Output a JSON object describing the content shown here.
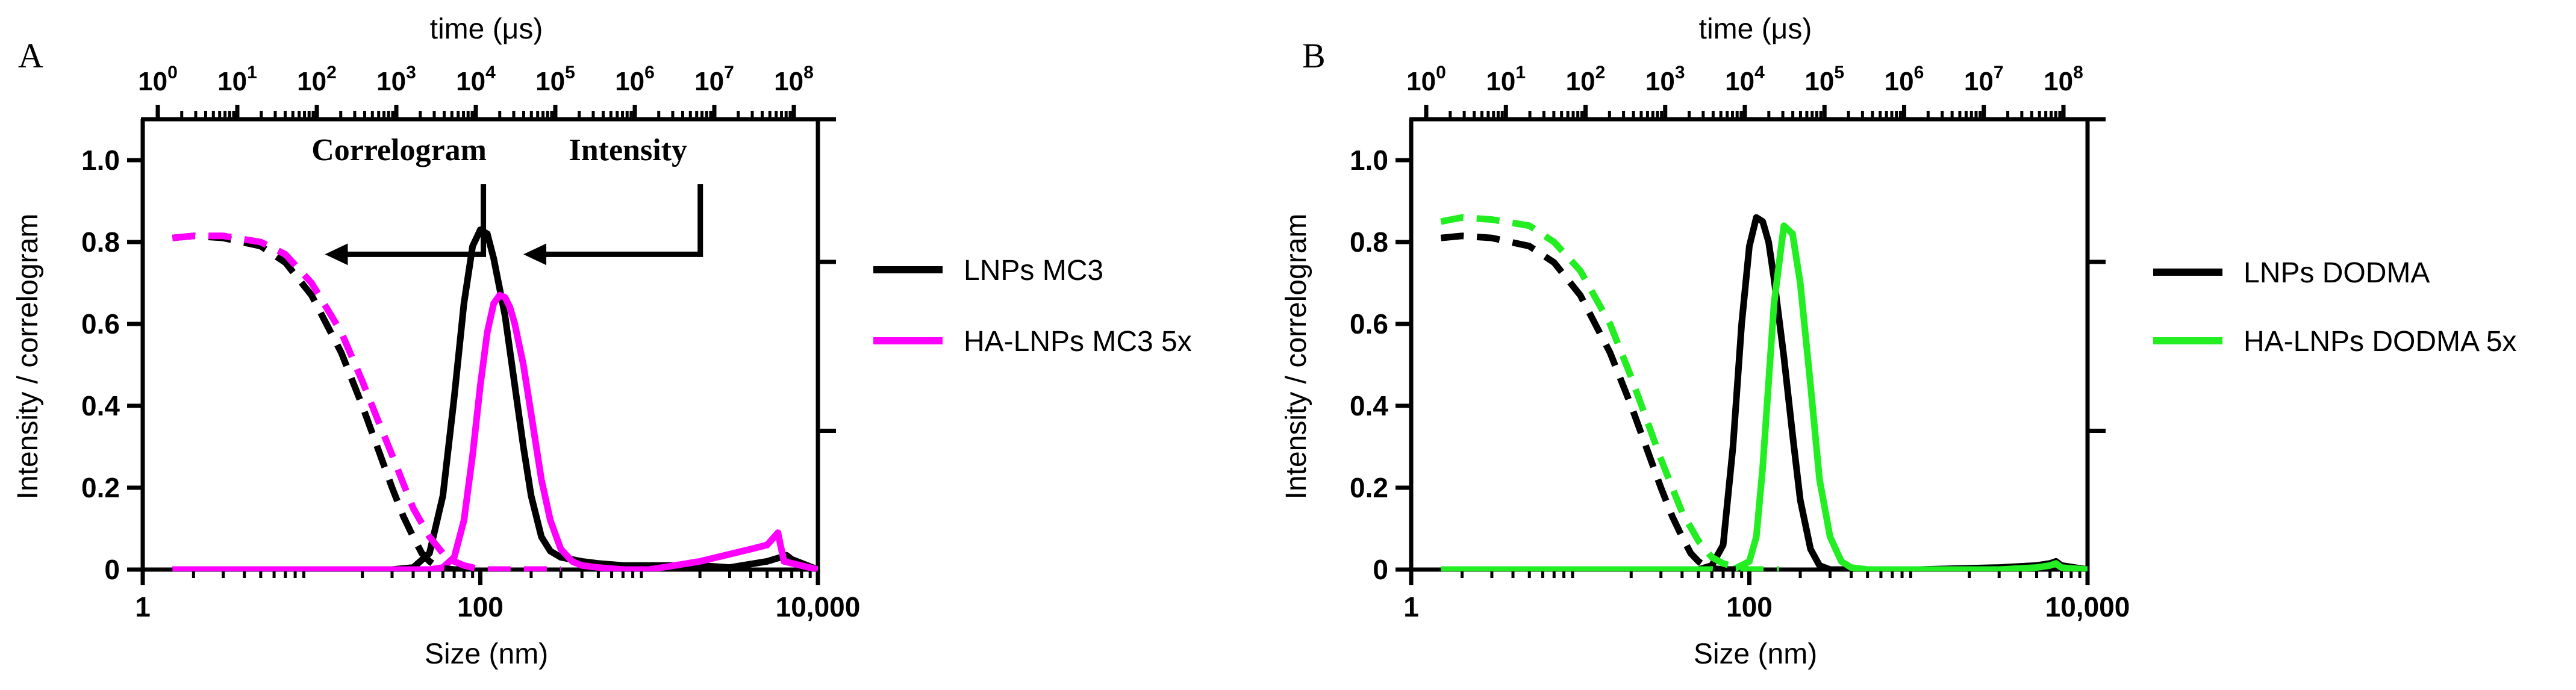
{
  "panels": [
    {
      "label": "A",
      "chart_data": {
        "type": "line",
        "title": "",
        "xlabel": "Size (nm)",
        "ylabel": "Intensity / correlogram",
        "x_scale": "log",
        "xlim": [
          1,
          10000
        ],
        "ylim": [
          0,
          1.1
        ],
        "x_ticks": [
          1,
          100,
          10000
        ],
        "x_tick_labels": [
          "1",
          "100",
          "10,000"
        ],
        "y_ticks": [
          0,
          0.2,
          0.4,
          0.6,
          0.8,
          1.0
        ],
        "y_tick_labels": [
          "0",
          "0.2",
          "0.4",
          "0.6",
          "0.8",
          "1.0"
        ],
        "top_axis": {
          "label": "time (μs)",
          "ticks": [
            {
              "base": "10",
              "exp": "0"
            },
            {
              "base": "10",
              "exp": "1"
            },
            {
              "base": "10",
              "exp": "2"
            },
            {
              "base": "10",
              "exp": "3"
            },
            {
              "base": "10",
              "exp": "4"
            },
            {
              "base": "10",
              "exp": "5"
            },
            {
              "base": "10",
              "exp": "6"
            },
            {
              "base": "10",
              "exp": "7"
            },
            {
              "base": "10",
              "exp": "8"
            }
          ]
        },
        "annotations": [
          {
            "text": "Correlogram",
            "x": 33,
            "y": 1.0,
            "arrow_to": {
              "x": 12,
              "y": 0.77
            }
          },
          {
            "text": "Intensity",
            "x": 750,
            "y": 1.0,
            "arrow_to": {
              "x": 180,
              "y": 0.77
            }
          }
        ],
        "legend": {
          "position": "right"
        },
        "series": [
          {
            "name": "LNPs MC3",
            "kind": "intensity",
            "style": "solid",
            "color": "#000000",
            "x": [
              1.5,
              30,
              40,
              50,
              60,
              70,
              80,
              90,
              100,
              110,
              120,
              140,
              160,
              180,
              200,
              230,
              260,
              300,
              400,
              500,
              700,
              1000,
              2000,
              3000,
              5000,
              6000,
              6500,
              7000,
              10000
            ],
            "y": [
              0,
              0,
              0.005,
              0.04,
              0.18,
              0.42,
              0.65,
              0.79,
              0.83,
              0.82,
              0.76,
              0.62,
              0.45,
              0.3,
              0.18,
              0.08,
              0.045,
              0.03,
              0.02,
              0.015,
              0.01,
              0.01,
              0.01,
              0.005,
              0.02,
              0.03,
              0.035,
              0.025,
              0
            ]
          },
          {
            "name": "HA-LNPs MC3 5x",
            "kind": "intensity",
            "style": "solid",
            "color": "#ff00ff",
            "x": [
              1.5,
              50,
              60,
              70,
              80,
              90,
              100,
              110,
              120,
              130,
              140,
              150,
              160,
              180,
              200,
              230,
              260,
              300,
              350,
              400,
              500,
              700,
              1000,
              2000,
              4000,
              5000,
              5800,
              6000,
              6300,
              10000
            ],
            "y": [
              0,
              0,
              0.005,
              0.03,
              0.12,
              0.28,
              0.45,
              0.58,
              0.65,
              0.67,
              0.665,
              0.64,
              0.6,
              0.5,
              0.38,
              0.22,
              0.12,
              0.05,
              0.02,
              0.01,
              0.005,
              0,
              0,
              0.02,
              0.05,
              0.06,
              0.09,
              0.06,
              0.02,
              0
            ]
          },
          {
            "name": "LNPs MC3 correlogram",
            "kind": "correlogram",
            "style": "dashed",
            "color": "#000000",
            "x": [
              1.5,
              2,
              3,
              5,
              7,
              10,
              15,
              20,
              25,
              30,
              35,
              40,
              45,
              50,
              55,
              60,
              70,
              100
            ],
            "y": [
              0.81,
              0.815,
              0.81,
              0.79,
              0.75,
              0.67,
              0.53,
              0.4,
              0.29,
              0.2,
              0.13,
              0.08,
              0.04,
              0.02,
              0.008,
              0.003,
              0,
              0
            ]
          },
          {
            "name": "HA-LNPs MC3 5x correlogram",
            "kind": "correlogram",
            "style": "dashed",
            "color": "#ff00ff",
            "x": [
              1.5,
              2,
              3,
              5,
              7,
              10,
              15,
              20,
              25,
              30,
              35,
              40,
              50,
              60,
              70,
              80,
              90,
              100,
              150,
              200,
              300
            ],
            "y": [
              0.81,
              0.815,
              0.815,
              0.8,
              0.77,
              0.7,
              0.58,
              0.46,
              0.36,
              0.28,
              0.21,
              0.15,
              0.08,
              0.04,
              0.02,
              0.01,
              0.005,
              0,
              0,
              0,
              0
            ]
          }
        ]
      }
    },
    {
      "label": "B",
      "chart_data": {
        "type": "line",
        "title": "",
        "xlabel": "Size (nm)",
        "ylabel": "Intensity / correlogram",
        "x_scale": "log",
        "xlim": [
          1,
          10000
        ],
        "ylim": [
          0,
          1.1
        ],
        "x_ticks": [
          1,
          100,
          10000
        ],
        "x_tick_labels": [
          "1",
          "100",
          "10,000"
        ],
        "y_ticks": [
          0,
          0.2,
          0.4,
          0.6,
          0.8,
          1.0
        ],
        "y_tick_labels": [
          "0",
          "0.2",
          "0.4",
          "0.6",
          "0.8",
          "1.0"
        ],
        "top_axis": {
          "label": "time (μs)",
          "ticks": [
            {
              "base": "10",
              "exp": "0"
            },
            {
              "base": "10",
              "exp": "1"
            },
            {
              "base": "10",
              "exp": "2"
            },
            {
              "base": "10",
              "exp": "3"
            },
            {
              "base": "10",
              "exp": "4"
            },
            {
              "base": "10",
              "exp": "5"
            },
            {
              "base": "10",
              "exp": "6"
            },
            {
              "base": "10",
              "exp": "7"
            },
            {
              "base": "10",
              "exp": "8"
            }
          ]
        },
        "annotations": [],
        "legend": {
          "position": "right"
        },
        "series": [
          {
            "name": "LNPs DODMA",
            "kind": "intensity",
            "style": "solid",
            "color": "#000000",
            "x": [
              1.5,
              50,
              60,
              70,
              80,
              90,
              100,
              110,
              120,
              130,
              140,
              160,
              180,
              200,
              230,
              260,
              300,
              500,
              1000,
              3000,
              5000,
              6000,
              6500,
              7000,
              10000
            ],
            "y": [
              0,
              0,
              0.01,
              0.06,
              0.3,
              0.6,
              0.79,
              0.86,
              0.85,
              0.8,
              0.71,
              0.52,
              0.33,
              0.17,
              0.05,
              0.01,
              0,
              0,
              0,
              0.005,
              0.01,
              0.015,
              0.02,
              0.01,
              0
            ]
          },
          {
            "name": "HA-LNPs DODMA 5x",
            "kind": "intensity",
            "style": "solid",
            "color": "#22ee22",
            "x": [
              1.5,
              80,
              100,
              110,
              120,
              140,
              160,
              180,
              200,
              230,
              260,
              300,
              350,
              400,
              500,
              700,
              1000,
              3000,
              5000,
              6000,
              6500,
              7000,
              10000
            ],
            "y": [
              0,
              0,
              0.02,
              0.08,
              0.25,
              0.65,
              0.84,
              0.82,
              0.7,
              0.45,
              0.22,
              0.08,
              0.02,
              0.005,
              0,
              0,
              0,
              0,
              0.005,
              0.01,
              0.015,
              0.005,
              0
            ]
          },
          {
            "name": "LNPs DODMA correlogram",
            "kind": "correlogram",
            "style": "dashed",
            "color": "#000000",
            "x": [
              1.5,
              2,
              3,
              5,
              7,
              10,
              15,
              20,
              25,
              30,
              35,
              40,
              45,
              50,
              55,
              60,
              70,
              100
            ],
            "y": [
              0.81,
              0.815,
              0.81,
              0.79,
              0.75,
              0.67,
              0.53,
              0.4,
              0.29,
              0.2,
              0.13,
              0.08,
              0.04,
              0.02,
              0.008,
              0.003,
              0,
              0
            ]
          },
          {
            "name": "HA-LNPs DODMA 5x correlogram",
            "kind": "correlogram",
            "style": "dashed",
            "color": "#22ee22",
            "x": [
              1.5,
              2,
              3,
              5,
              7,
              10,
              15,
              20,
              25,
              30,
              35,
              40,
              50,
              60,
              70,
              80,
              90,
              100,
              150
            ],
            "y": [
              0.85,
              0.86,
              0.855,
              0.84,
              0.8,
              0.73,
              0.6,
              0.47,
              0.36,
              0.27,
              0.2,
              0.14,
              0.07,
              0.03,
              0.015,
              0.008,
              0.003,
              0,
              0
            ]
          }
        ]
      }
    }
  ]
}
